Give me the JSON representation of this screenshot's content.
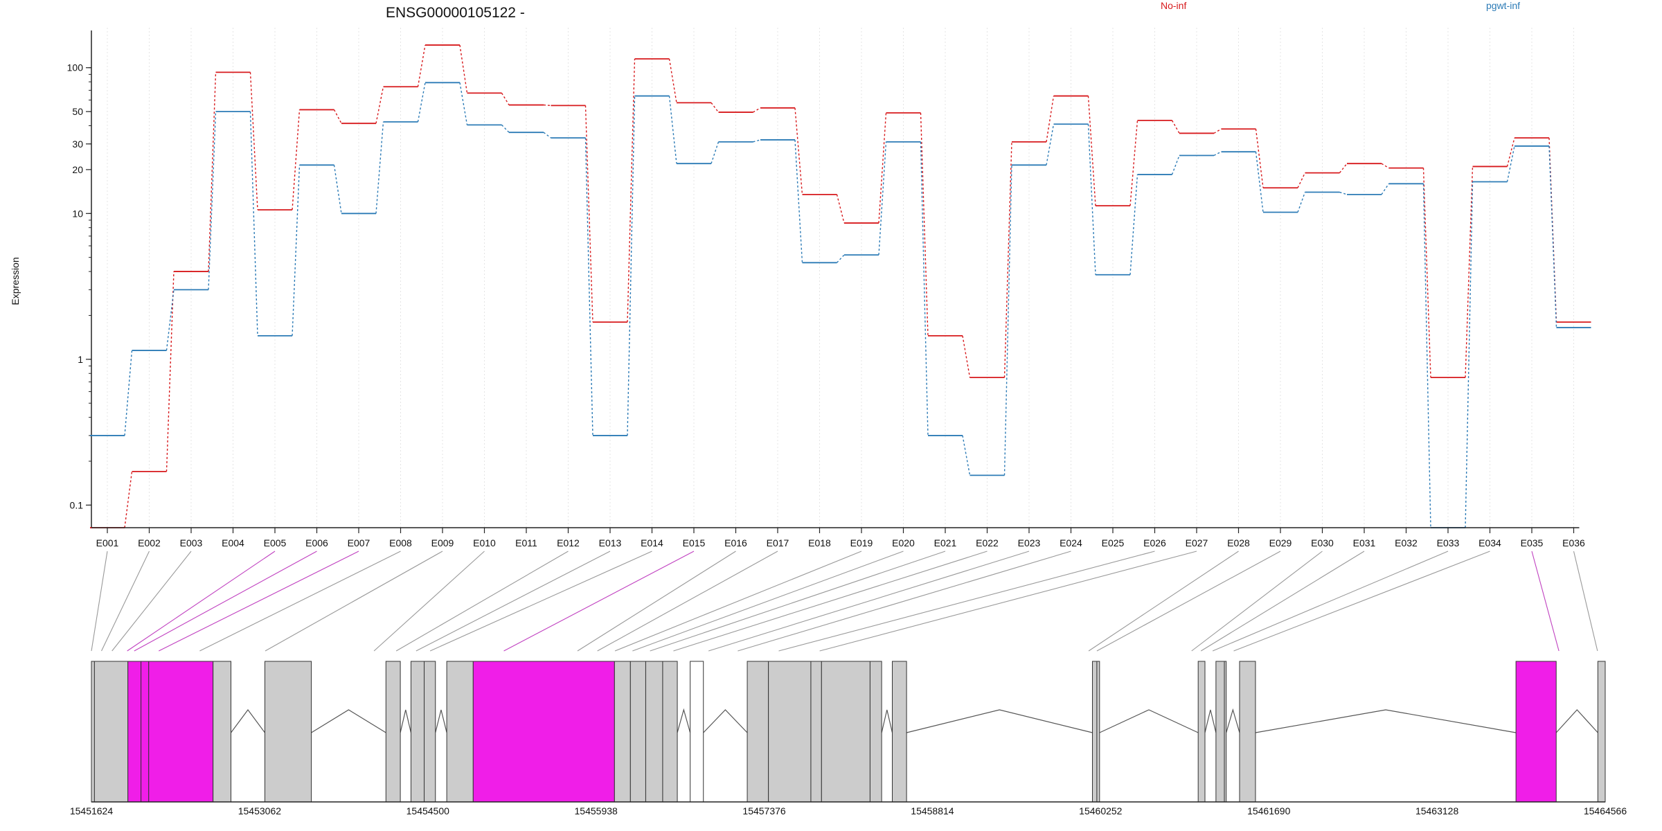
{
  "chart_data": {
    "type": "line",
    "title": "ENSG00000105122 -",
    "ylabel": "Expression",
    "y_scale": "log",
    "ylim": [
      0.07,
      180
    ],
    "yticks": [
      0.1,
      1,
      10,
      20,
      30,
      50,
      100
    ],
    "ytick_labels": [
      "0.1",
      "1",
      "10",
      "20",
      "30",
      "50",
      "100"
    ],
    "categories": [
      "E001",
      "E002",
      "E003",
      "E004",
      "E005",
      "E006",
      "E007",
      "E008",
      "E009",
      "E010",
      "E011",
      "E012",
      "E013",
      "E014",
      "E015",
      "E016",
      "E017",
      "E018",
      "E019",
      "E020",
      "E021",
      "E022",
      "E023",
      "E024",
      "E025",
      "E026",
      "E027",
      "E028",
      "E029",
      "E030",
      "E031",
      "E032",
      "E033",
      "E034",
      "E035",
      "E036"
    ],
    "series": [
      {
        "name": "No-inf",
        "color": "#d7191c",
        "values": [
          0.07,
          0.17,
          4.0,
          93,
          10.6,
          51.5,
          41.5,
          74,
          143,
          67,
          55.5,
          55,
          1.8,
          115,
          57.5,
          49.5,
          53,
          13.5,
          8.6,
          49,
          1.45,
          0.75,
          31,
          64,
          11.3,
          43.5,
          35.5,
          38,
          15,
          19,
          22,
          20.5,
          0.75,
          21,
          33,
          1.8
        ]
      },
      {
        "name": "pgwt-inf",
        "color": "#2c7bb6",
        "values": [
          0.3,
          1.15,
          3.0,
          50,
          1.45,
          21.5,
          10,
          42.5,
          79,
          40.5,
          36,
          33,
          0.3,
          64,
          22,
          31,
          32,
          4.6,
          5.2,
          31,
          0.3,
          0.16,
          21.5,
          41,
          3.8,
          18.5,
          25,
          26.5,
          10.2,
          14,
          13.5,
          16,
          0.07,
          16.5,
          29,
          1.65
        ]
      }
    ],
    "exon_highlight": [
      "E005",
      "E006",
      "E007",
      "E015",
      "E035"
    ],
    "genomic_axis": {
      "range": [
        15451624,
        15464566
      ],
      "tick_labels": [
        "15451624",
        "15453062",
        "15454500",
        "15455938",
        "15457376",
        "15458814",
        "15460252",
        "15461690",
        "15463128",
        "15464566"
      ],
      "tick_values": [
        15451624,
        15453062,
        15454500,
        15455938,
        15457376,
        15458814,
        15460252,
        15461690,
        15463128,
        15464566
      ]
    },
    "gene_model": {
      "highlight_color": "#f01ee8",
      "exon_fill": "#cccccc",
      "exons": [
        {
          "start": 15451624,
          "end": 15451650,
          "fill": "gray"
        },
        {
          "start": 15451650,
          "end": 15451936,
          "fill": "gray"
        },
        {
          "start": 15451936,
          "end": 15452048,
          "fill": "highlight"
        },
        {
          "start": 15452048,
          "end": 15452114,
          "fill": "highlight"
        },
        {
          "start": 15452114,
          "end": 15452664,
          "fill": "highlight"
        },
        {
          "start": 15452664,
          "end": 15452817,
          "fill": "gray"
        },
        {
          "start": 15453107,
          "end": 15453504,
          "fill": "gray"
        },
        {
          "start": 15454142,
          "end": 15454265,
          "fill": "gray"
        },
        {
          "start": 15454356,
          "end": 15454469,
          "fill": "gray"
        },
        {
          "start": 15454469,
          "end": 15454565,
          "fill": "gray"
        },
        {
          "start": 15454662,
          "end": 15454888,
          "fill": "gray"
        },
        {
          "start": 15454888,
          "end": 15456096,
          "fill": "highlight"
        },
        {
          "start": 15456096,
          "end": 15456232,
          "fill": "gray"
        },
        {
          "start": 15456232,
          "end": 15456363,
          "fill": "gray"
        },
        {
          "start": 15456363,
          "end": 15456508,
          "fill": "gray"
        },
        {
          "start": 15456508,
          "end": 15456633,
          "fill": "gray"
        },
        {
          "start": 15456743,
          "end": 15456856,
          "fill": "white"
        },
        {
          "start": 15457231,
          "end": 15457412,
          "fill": "gray"
        },
        {
          "start": 15457412,
          "end": 15457775,
          "fill": "gray"
        },
        {
          "start": 15457775,
          "end": 15457866,
          "fill": "gray"
        },
        {
          "start": 15457866,
          "end": 15458281,
          "fill": "gray"
        },
        {
          "start": 15458281,
          "end": 15458380,
          "fill": "gray"
        },
        {
          "start": 15458471,
          "end": 15458593,
          "fill": "gray"
        },
        {
          "start": 15460182,
          "end": 15460220,
          "fill": "gray"
        },
        {
          "start": 15460220,
          "end": 15460243,
          "fill": "gray"
        },
        {
          "start": 15461086,
          "end": 15461144,
          "fill": "gray"
        },
        {
          "start": 15461238,
          "end": 15461310,
          "fill": "gray"
        },
        {
          "start": 15461310,
          "end": 15461326,
          "fill": "gray"
        },
        {
          "start": 15461440,
          "end": 15461576,
          "fill": "gray"
        },
        {
          "start": 15463803,
          "end": 15464147,
          "fill": "highlight"
        },
        {
          "start": 15464503,
          "end": 15464566,
          "fill": "gray"
        }
      ],
      "connector_targets": [
        15451624,
        15451710,
        15451800,
        15451930,
        15451990,
        15452200,
        15452550,
        15453110,
        15454040,
        15454230,
        15454400,
        15454520,
        15455150,
        15455780,
        15455950,
        15456100,
        15456250,
        15456400,
        15456600,
        15456900,
        15457150,
        15457500,
        15457850,
        15460150,
        15460220,
        15461030,
        15461110,
        15461210,
        15461390,
        15464170,
        15464500
      ]
    }
  }
}
